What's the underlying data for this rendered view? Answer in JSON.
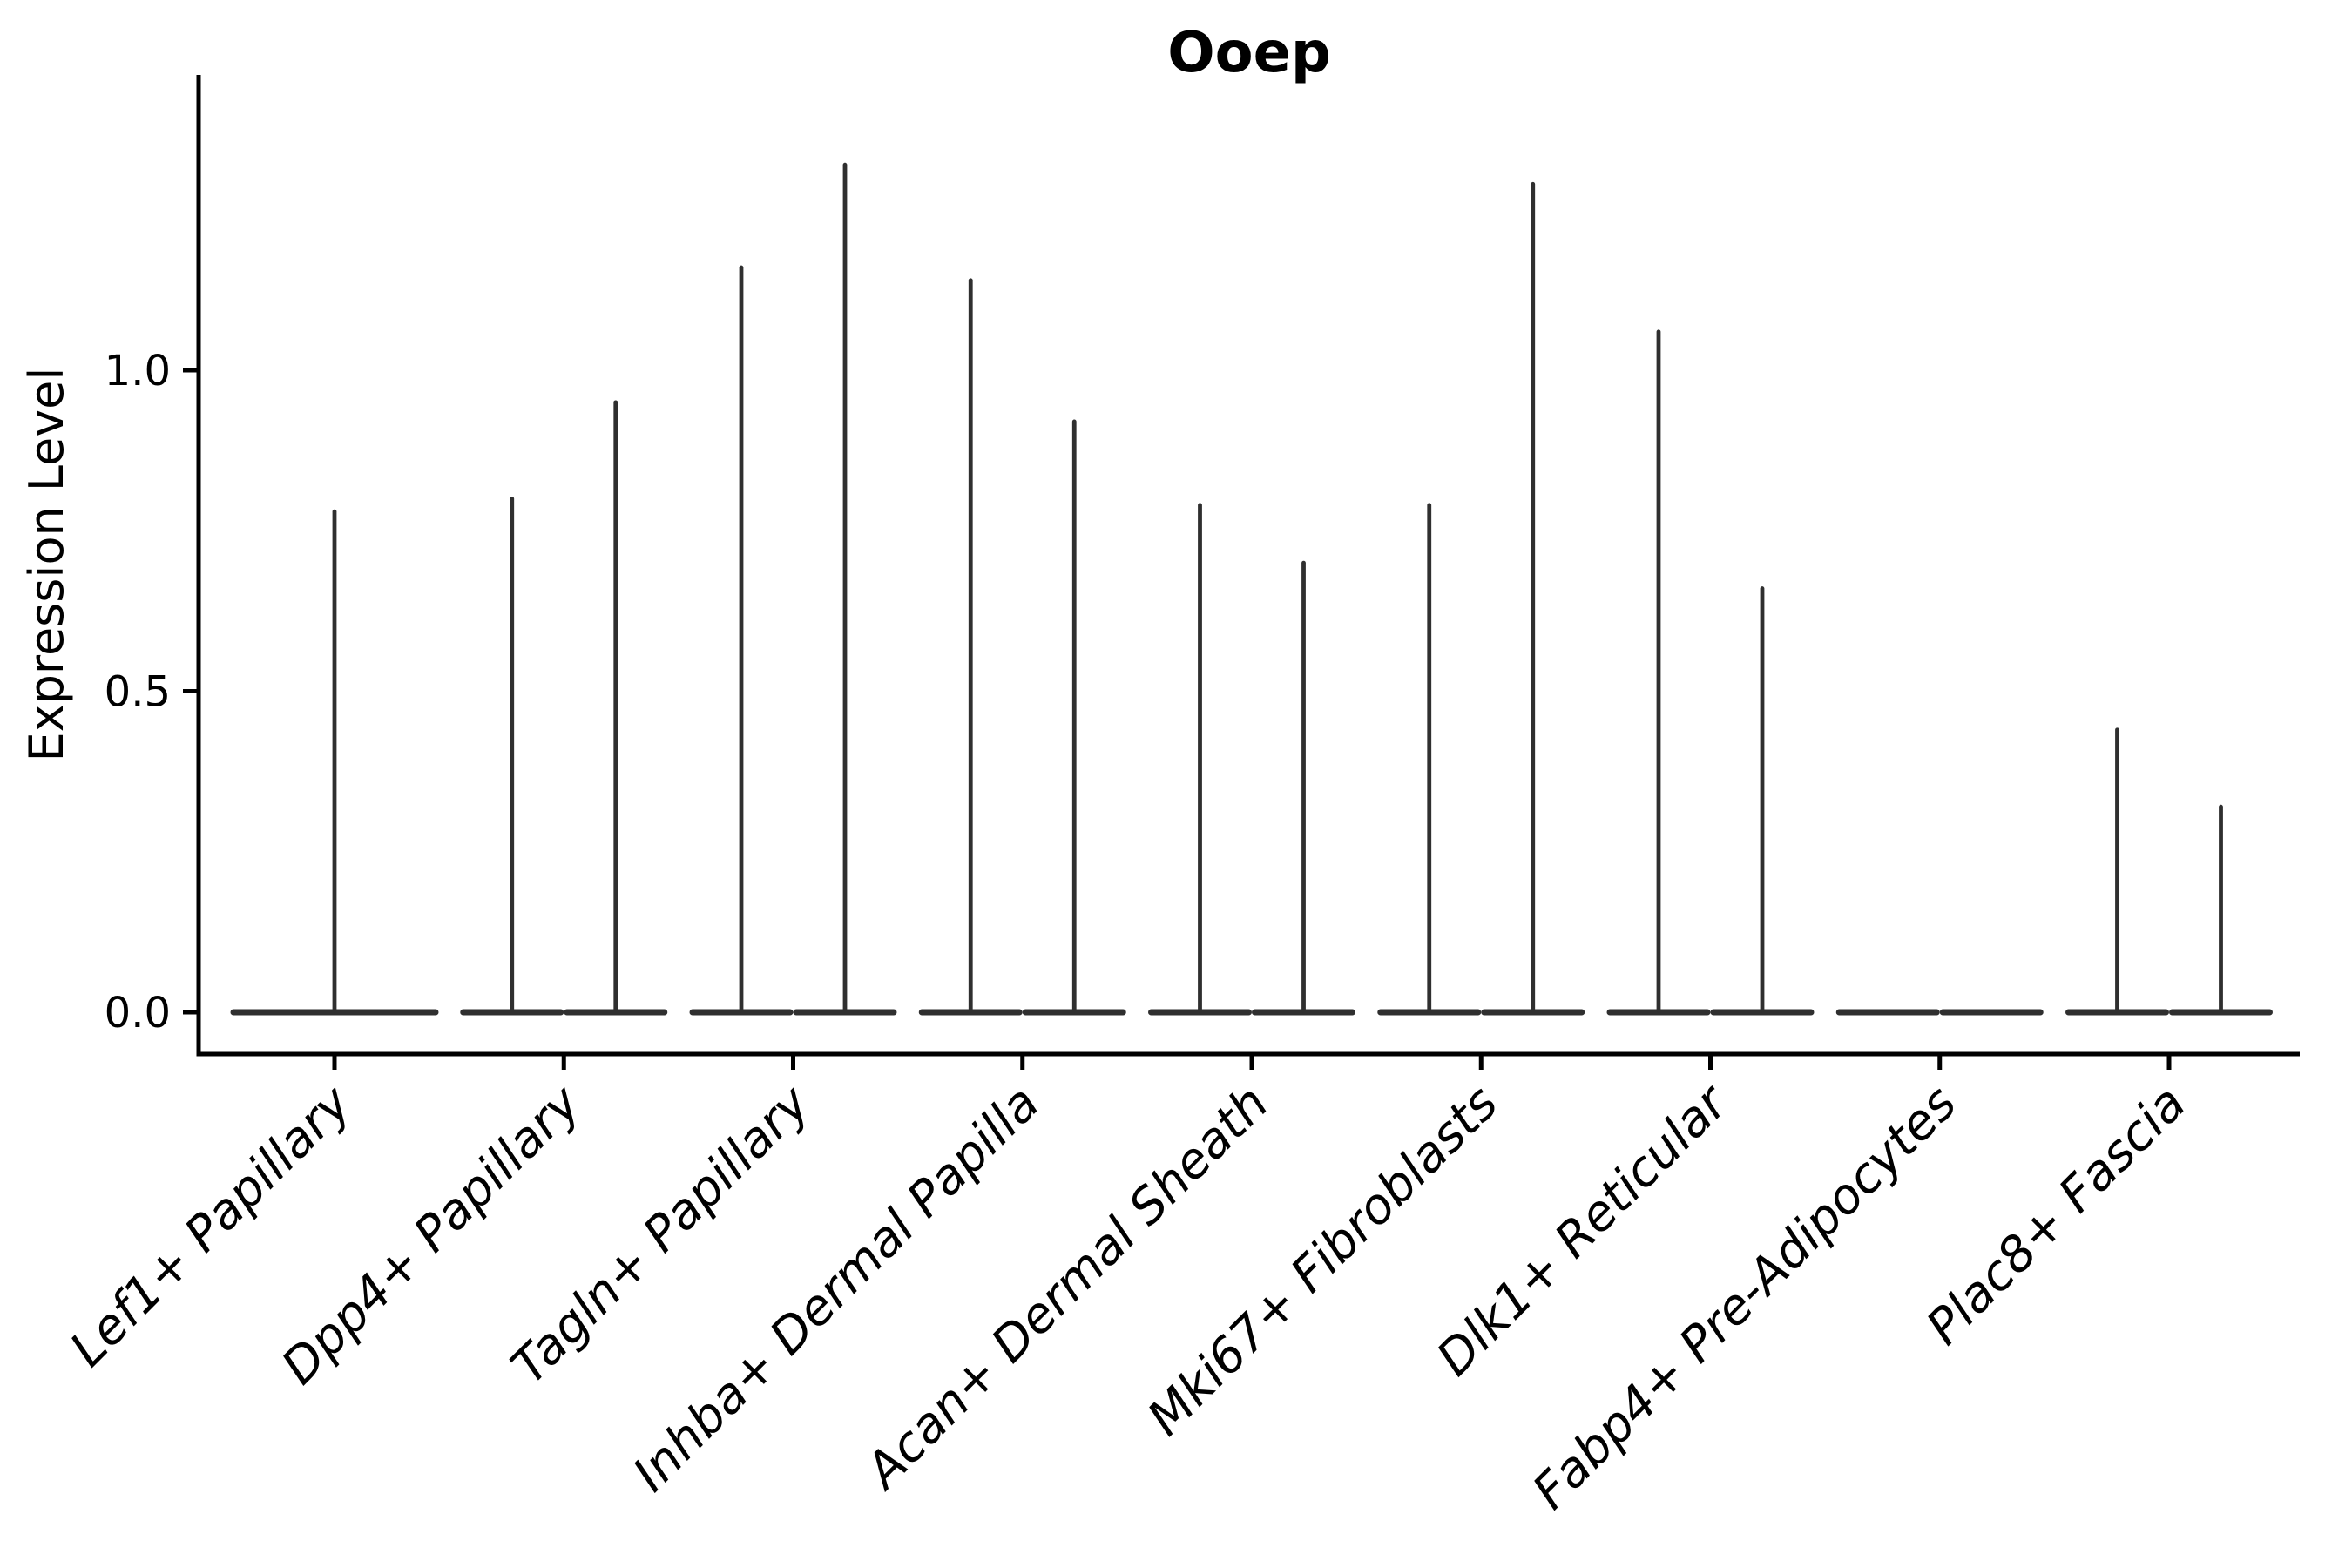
{
  "page": {
    "background": "#ffffff"
  },
  "chart_data": {
    "type": "violin",
    "title": "Ooep",
    "ylabel": "Expression Level",
    "xlabel": "",
    "categories": [
      "Lef1+ Papillary",
      "Dpp4+ Papillary",
      "Tagln+ Papillary",
      "Inhba+ Dermal Papilla",
      "Acan+ Dermal Sheath",
      "Mki67+ Fibroblasts",
      "Dlk1+ Reticular",
      "Fabp4+ Pre-Adipocytes",
      "Plac8+ Fascia"
    ],
    "yticks": {
      "labels": [
        "0.0",
        "0.5",
        "1.0"
      ],
      "values": [
        0.0,
        0.5,
        1.0
      ]
    },
    "ylim": [
      -0.07,
      1.46
    ],
    "grid": false,
    "legend": "none",
    "note": "Each category holds up to two dodged violins; most mass flattened at 0 with a thin spike to the max expression value. A category with a single violin is drawn centered at full width; Fabp4+ Pre-Adipocytes is entirely flat at 0.",
    "series_max": [
      [
        0.78
      ],
      [
        0.8,
        0.95
      ],
      [
        1.16,
        1.32
      ],
      [
        1.14,
        0.92
      ],
      [
        0.79,
        0.7
      ],
      [
        0.79,
        1.29
      ],
      [
        1.06,
        0.66
      ],
      [
        0.0,
        0.0
      ],
      [
        0.44,
        0.32
      ]
    ],
    "colors": {
      "violin": "#2f2f2f",
      "axis": "#000000",
      "text": "#000000",
      "background": "#ffffff"
    }
  }
}
